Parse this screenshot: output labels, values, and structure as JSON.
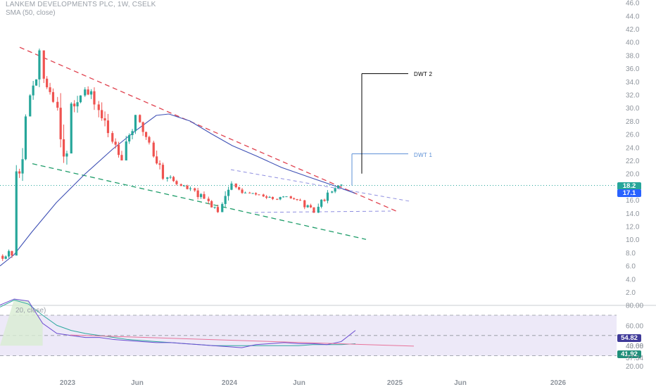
{
  "header": {
    "title": "LANKEM DEVELOPMENTS PLC, 1W, CSELK",
    "sma_label": "SMA (50, close)",
    "rsi_label": "20, close)"
  },
  "colors": {
    "up": "#26a69a",
    "down": "#ef5350",
    "sma": "#3f51b5",
    "target1": "#5b8fd6",
    "target2": "#000000",
    "rsi_line": "#6a4bd1",
    "rsi_ma": "#2ea89f",
    "rsi_trend": "#e8739a",
    "price_line": "#26a69a"
  },
  "annotations": {
    "dwt1": "DWT 1",
    "dwt2": "DWT 2"
  },
  "badges": {
    "last_price": "18.2",
    "sma_value": "17.1",
    "rsi_value": "54.82",
    "rsi_ma_value": "41.92",
    "rsi_level_a": "43.68",
    "rsi_level_b": "37.34"
  },
  "chart_data": [
    {
      "type": "candlestick",
      "title": "LANKEM DEVELOPMENTS PLC, 1W, CSELK",
      "y_ticks": [
        "2.0",
        "4.0",
        "6.0",
        "8.0",
        "10.0",
        "12.0",
        "14.0",
        "16.0",
        "18.0",
        "20.0",
        "22.0",
        "24.0",
        "26.0",
        "28.0",
        "30.0",
        "32.0",
        "34.0",
        "36.0",
        "38.0",
        "40.0",
        "42.0",
        "44.0",
        "46.0"
      ],
      "ylim": [
        0,
        47
      ],
      "x_ticks": [
        "2023",
        "Jun",
        "2024",
        "Jun",
        "2025",
        "Jun",
        "2026"
      ],
      "candles_approx": [
        {
          "t": "2022-10",
          "o": 7.5,
          "h": 9.5,
          "l": 6.5,
          "c": 7.8
        },
        {
          "t": "2022-11",
          "o": 15.5,
          "h": 29,
          "l": 15,
          "c": 27
        },
        {
          "t": "2022-12",
          "o": 30,
          "h": 39,
          "l": 29,
          "c": 37
        },
        {
          "t": "2023-01",
          "o": 35,
          "h": 37,
          "l": 30,
          "c": 32
        },
        {
          "t": "2023-02",
          "o": 33,
          "h": 36,
          "l": 21,
          "c": 22
        },
        {
          "t": "2023-03",
          "o": 28,
          "h": 35,
          "l": 27,
          "c": 33
        },
        {
          "t": "2023-04",
          "o": 33,
          "h": 35,
          "l": 29,
          "c": 31
        },
        {
          "t": "2023-05",
          "o": 31,
          "h": 33,
          "l": 25,
          "c": 26
        },
        {
          "t": "2023-06",
          "o": 26,
          "h": 28,
          "l": 22,
          "c": 23
        },
        {
          "t": "2023-07",
          "o": 24,
          "h": 29,
          "l": 23,
          "c": 28
        },
        {
          "t": "2023-08",
          "o": 28,
          "h": 29,
          "l": 24,
          "c": 25
        },
        {
          "t": "2023-09",
          "o": 24,
          "h": 25,
          "l": 19,
          "c": 20
        },
        {
          "t": "2023-10",
          "o": 20,
          "h": 20.5,
          "l": 17.5,
          "c": 18.5
        },
        {
          "t": "2023-11",
          "o": 18.5,
          "h": 19,
          "l": 17,
          "c": 17.5
        },
        {
          "t": "2023-12",
          "o": 17.5,
          "h": 18,
          "l": 15,
          "c": 16
        },
        {
          "t": "2024-01",
          "o": 16,
          "h": 16.5,
          "l": 13.5,
          "c": 14.5
        },
        {
          "t": "2024-02",
          "o": 15,
          "h": 19.5,
          "l": 14.5,
          "c": 18.5
        },
        {
          "t": "2024-03",
          "o": 18,
          "h": 18.5,
          "l": 16.5,
          "c": 17
        },
        {
          "t": "2024-04",
          "o": 17,
          "h": 17.5,
          "l": 16.3,
          "c": 16.8
        },
        {
          "t": "2024-05",
          "o": 16.8,
          "h": 17.2,
          "l": 15.5,
          "c": 16
        },
        {
          "t": "2024-06",
          "o": 16.2,
          "h": 16.8,
          "l": 15.8,
          "c": 16.4
        },
        {
          "t": "2024-07",
          "o": 16.4,
          "h": 16.8,
          "l": 15.5,
          "c": 15.8
        },
        {
          "t": "2024-08",
          "o": 15.5,
          "h": 16,
          "l": 14,
          "c": 14.2
        },
        {
          "t": "2024-09",
          "o": 14,
          "h": 17.5,
          "l": 14,
          "c": 17.2
        },
        {
          "t": "2024-10",
          "o": 17.2,
          "h": 19,
          "l": 17,
          "c": 18.2
        }
      ],
      "sma_50": {
        "name": "SMA (50, close)",
        "last": 17.1
      },
      "last_price": 18.2,
      "targets": [
        {
          "label": "DWT 1",
          "price": 23.0
        },
        {
          "label": "DWT 2",
          "price": 35.2
        }
      ]
    },
    {
      "type": "line",
      "title": "RSI",
      "y_ticks": [
        "20.00",
        "40.00",
        "60.00",
        "80.00"
      ],
      "ylim": [
        18,
        90
      ],
      "levels": [
        70,
        50,
        30
      ],
      "series": [
        {
          "name": "",
          "values": [
            80,
            86,
            84,
            62,
            52,
            50,
            48,
            48,
            46,
            45,
            44,
            43,
            43,
            42,
            41,
            40,
            39,
            38,
            41,
            42,
            43,
            42,
            42,
            41,
            44,
            55
          ]
        },
        {
          "name": "",
          "values": [
            78,
            85,
            81,
            70,
            60,
            55,
            52,
            50,
            48,
            46,
            45,
            44,
            43,
            42,
            41,
            40,
            40,
            40,
            40,
            40,
            40,
            40,
            41,
            41,
            41,
            41.9
          ]
        }
      ],
      "values_shown": {
        "rsi": 54.82,
        "rsi_ma": 41.92,
        "upper": 43.68,
        "lower": 37.34
      }
    }
  ]
}
